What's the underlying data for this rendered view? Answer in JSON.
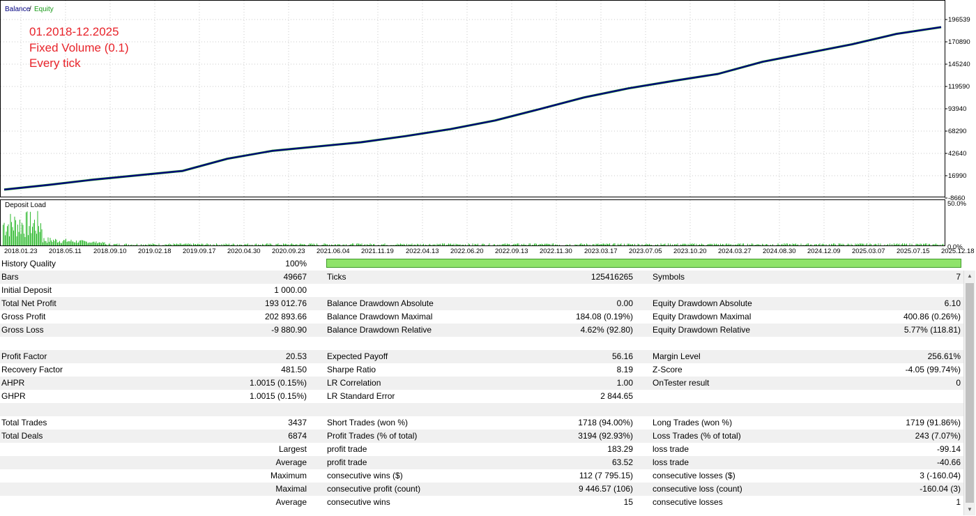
{
  "chart": {
    "legend_balance": "Balance",
    "legend_sep": "/",
    "legend_equity": "Equity",
    "annotation_lines": [
      "01.2018-12.2025",
      "Fixed Volume (0.1)",
      "Every tick"
    ],
    "y_ticks": [
      "196539",
      "170890",
      "145240",
      "119590",
      "93940",
      "68290",
      "42640",
      "16990",
      "-8660"
    ],
    "deposit_load_label": "Deposit Load",
    "deposit_y_ticks": [
      "50.0%",
      "0.0%"
    ],
    "x_ticks": [
      "2018.01.23",
      "2018.05.11",
      "2018.09.10",
      "2019.02.18",
      "2019.09.17",
      "2020.04.30",
      "2020.09.23",
      "2021.06.04",
      "2021.11.19",
      "2022.04.13",
      "2022.06.20",
      "2022.09.13",
      "2022.11.30",
      "2023.03.17",
      "2023.07.05",
      "2023.10.20",
      "2024.03.27",
      "2024.08.30",
      "2024.12.09",
      "2025.03.07",
      "2025.07.15",
      "2025.12.18"
    ],
    "colors": {
      "balance": "#000080",
      "equity": "#1a9a1a",
      "load": "#2bb82b",
      "annotation": "#e8232a"
    }
  },
  "chart_data": {
    "type": "line",
    "series": [
      {
        "name": "Balance",
        "x": [
          0,
          1,
          2,
          3,
          4,
          5,
          6,
          7,
          8,
          9,
          10,
          11,
          12,
          13,
          14,
          15,
          16,
          17,
          18,
          19,
          20,
          21
        ],
        "values": [
          1000,
          6500,
          12500,
          17500,
          22500,
          36500,
          45500,
          50500,
          55500,
          62500,
          70500,
          80500,
          93500,
          107000,
          117500,
          126000,
          134000,
          148000,
          158000,
          168000,
          180000,
          187800
        ]
      },
      {
        "name": "Equity",
        "x": [
          0,
          1,
          2,
          3,
          4,
          5,
          6,
          7,
          8,
          9,
          10,
          11,
          12,
          13,
          14,
          15,
          16,
          17,
          18,
          19,
          20,
          21
        ],
        "values": [
          1000,
          6500,
          12500,
          17500,
          22500,
          36500,
          45500,
          50500,
          55500,
          62500,
          70500,
          80500,
          93500,
          107000,
          117500,
          126000,
          134000,
          148000,
          158000,
          168000,
          180000,
          187800
        ]
      }
    ],
    "ylim": [
      -8660,
      196539
    ]
  },
  "report": {
    "quality_label": "History Quality",
    "quality_value": "100%",
    "rows": [
      {
        "c1": "Bars",
        "c2": "49667",
        "c3": "Ticks",
        "c4": "125416265",
        "c5": "Symbols",
        "c6": "7"
      },
      {
        "c1": "Initial Deposit",
        "c2": "1 000.00",
        "c3": "",
        "c4": "",
        "c5": "",
        "c6": ""
      },
      {
        "c1": "Total Net Profit",
        "c2": "193 012.76",
        "c3": "Balance Drawdown Absolute",
        "c4": "0.00",
        "c5": "Equity Drawdown Absolute",
        "c6": "6.10"
      },
      {
        "c1": "Gross Profit",
        "c2": "202 893.66",
        "c3": "Balance Drawdown Maximal",
        "c4": "184.08 (0.19%)",
        "c5": "Equity Drawdown Maximal",
        "c6": "400.86 (0.26%)"
      },
      {
        "c1": "Gross Loss",
        "c2": "-9 880.90",
        "c3": "Balance Drawdown Relative",
        "c4": "4.62% (92.80)",
        "c5": "Equity Drawdown Relative",
        "c6": "5.77% (118.81)"
      },
      {
        "c1": "",
        "c2": "",
        "c3": "",
        "c4": "",
        "c5": "",
        "c6": ""
      },
      {
        "c1": "Profit Factor",
        "c2": "20.53",
        "c3": "Expected Payoff",
        "c4": "56.16",
        "c5": "Margin Level",
        "c6": "256.61%"
      },
      {
        "c1": "Recovery Factor",
        "c2": "481.50",
        "c3": "Sharpe Ratio",
        "c4": "8.19",
        "c5": "Z-Score",
        "c6": "-4.05 (99.74%)"
      },
      {
        "c1": "AHPR",
        "c2": "1.0015 (0.15%)",
        "c3": "LR Correlation",
        "c4": "1.00",
        "c5": "OnTester result",
        "c6": "0"
      },
      {
        "c1": "GHPR",
        "c2": "1.0015 (0.15%)",
        "c3": "LR Standard Error",
        "c4": "2 844.65",
        "c5": "",
        "c6": ""
      },
      {
        "c1": "",
        "c2": "",
        "c3": "",
        "c4": "",
        "c5": "",
        "c6": ""
      },
      {
        "c1": "Total Trades",
        "c2": "3437",
        "c3": "Short Trades (won %)",
        "c4": "1718 (94.00%)",
        "c5": "Long Trades (won %)",
        "c6": "1719 (91.86%)"
      },
      {
        "c1": "Total Deals",
        "c2": "6874",
        "c3": "Profit Trades (% of total)",
        "c4": "3194 (92.93%)",
        "c5": "Loss Trades (% of total)",
        "c6": "243 (7.07%)"
      },
      {
        "c1": "",
        "c2": "Largest",
        "c3": "profit trade",
        "c4": "183.29",
        "c5": "loss trade",
        "c6": "-99.14"
      },
      {
        "c1": "",
        "c2": "Average",
        "c3": "profit trade",
        "c4": "63.52",
        "c5": "loss trade",
        "c6": "-40.66"
      },
      {
        "c1": "",
        "c2": "Maximum",
        "c3": "consecutive wins ($)",
        "c4": "112 (7 795.15)",
        "c5": "consecutive losses ($)",
        "c6": "3 (-160.04)"
      },
      {
        "c1": "",
        "c2": "Maximal",
        "c3": "consecutive profit (count)",
        "c4": "9 446.57 (106)",
        "c5": "consecutive loss (count)",
        "c6": "-160.04 (3)"
      },
      {
        "c1": "",
        "c2": "Average",
        "c3": "consecutive wins",
        "c4": "15",
        "c5": "consecutive losses",
        "c6": "1"
      }
    ]
  },
  "scrollbar": {
    "up_icon": "▲",
    "down_icon": "▼"
  }
}
